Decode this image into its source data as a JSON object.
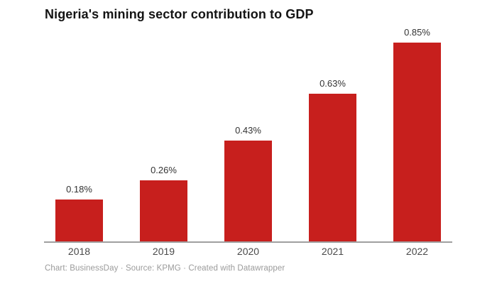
{
  "chart_data": {
    "type": "bar",
    "title": "Nigeria's mining sector contribution to GDP",
    "categories": [
      "2018",
      "2019",
      "2020",
      "2021",
      "2022"
    ],
    "values": [
      0.18,
      0.26,
      0.43,
      0.63,
      0.85
    ],
    "value_labels": [
      "0.18%",
      "0.26%",
      "0.43%",
      "0.63%",
      "0.85%"
    ],
    "unit": "%",
    "xlabel": "",
    "ylabel": "",
    "ylim": [
      0,
      0.85
    ],
    "grid": "off",
    "legend": "none",
    "bar_color": "#c71f1d",
    "axis_color": "#a0a0a0",
    "value_label_color": "#333333",
    "tick_label_color": "#4a4a4a",
    "title_color": "#141414"
  },
  "footer": {
    "text": "Chart: BusinessDay · Source: KPMG · Created with Datawrapper"
  }
}
